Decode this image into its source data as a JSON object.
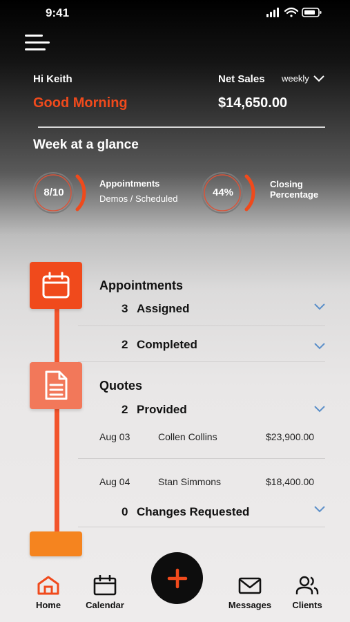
{
  "status_bar": {
    "time": "9:41"
  },
  "header": {
    "greeting_name": "Hi Keith",
    "salutation": "Good Morning",
    "net_sales_label": "Net Sales",
    "period": "weekly",
    "net_sales_value": "$14,650.00"
  },
  "week_at_glance": {
    "title": "Week at a glance",
    "appointments": {
      "value": "8/10",
      "label": "Appointments",
      "sub": "Demos / Scheduled"
    },
    "closing": {
      "value": "44%",
      "label_line1": "Closing",
      "label_line2": "Percentage"
    }
  },
  "appointments": {
    "title": "Appointments",
    "assigned": {
      "count": "3",
      "label": "Assigned"
    },
    "completed": {
      "count": "2",
      "label": "Completed"
    }
  },
  "quotes": {
    "title": "Quotes",
    "provided": {
      "count": "2",
      "label": "Provided"
    },
    "items": [
      {
        "date": "Aug 03",
        "client": "Collen Collins",
        "amount": "$23,900.00"
      },
      {
        "date": "Aug 04",
        "client": "Stan Simmons",
        "amount": "$18,400.00"
      }
    ],
    "changes": {
      "count": "0",
      "label": "Changes Requested"
    }
  },
  "nav": {
    "home": "Home",
    "calendar": "Calendar",
    "messages": "Messages",
    "clients": "Clients"
  },
  "colors": {
    "accent": "#f04a1c",
    "accent_light": "#f2785a",
    "orange": "#f5841f"
  }
}
